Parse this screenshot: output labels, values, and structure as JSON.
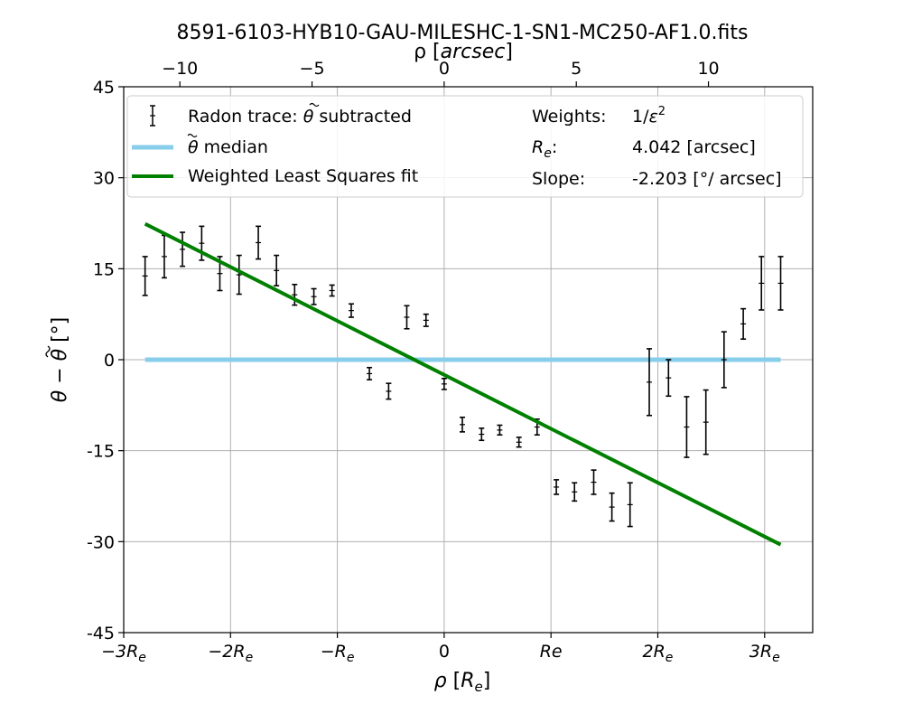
{
  "chart_data": {
    "type": "scatter",
    "title": "8591-6103-HYB10-GAU-MILESHC-1-SN1-MC250-AF1.0.fits",
    "xlabel": "ρ [Rₑ]",
    "xlabel_parts": {
      "main": "ρ [R",
      "sub": "e",
      "end": "]"
    },
    "x2label": "ρ [arcsec]",
    "x2label_parts": {
      "main": "ρ [",
      "italic": "arcsec",
      "end": "]"
    },
    "ylabel": "θ − θ̃ [°]",
    "xlim": [
      -3.0,
      3.45
    ],
    "ylim": [
      -45,
      45
    ],
    "x2lim": [
      -12.126,
      13.945
    ],
    "yticks": [
      -45,
      -30,
      -15,
      0,
      15,
      30,
      45
    ],
    "ytick_labels": [
      "-45",
      "-30",
      "-15",
      "0",
      "15",
      "30",
      "45"
    ],
    "xticks": [
      -3,
      -2,
      -1,
      0,
      1,
      2,
      3
    ],
    "xtick_labels": [
      {
        "base": "−3R",
        "sub": "e"
      },
      {
        "base": "−2R",
        "sub": "e"
      },
      {
        "base": "−R",
        "sub": "e"
      },
      {
        "base": "0",
        "sub": ""
      },
      {
        "base": "Re",
        "sub": ""
      },
      {
        "base": "2R",
        "sub": "e"
      },
      {
        "base": "3R",
        "sub": "e"
      }
    ],
    "x2ticks": [
      -10,
      -5,
      0,
      5,
      10
    ],
    "x2tick_labels": [
      "−10",
      "−5",
      "0",
      "5",
      "10"
    ],
    "grid": true,
    "legend_position": "top",
    "colors": {
      "points": "#000000",
      "median": "#87ceeb",
      "fit": "#008000"
    },
    "series": [
      {
        "name": "Radon trace: θ̃ subtracted",
        "name_parts": {
          "pre": "Radon trace: ",
          "sym": "θ",
          "post": " subtracted"
        },
        "kind": "errorbar",
        "x": [
          -2.8,
          -2.62,
          -2.45,
          -2.27,
          -2.1,
          -1.92,
          -1.74,
          -1.57,
          -1.4,
          -1.22,
          -1.05,
          -0.87,
          -0.7,
          -0.52,
          -0.35,
          -0.17,
          0.0,
          0.17,
          0.35,
          0.52,
          0.7,
          0.87,
          1.05,
          1.22,
          1.4,
          1.57,
          1.74,
          1.92,
          2.1,
          2.27,
          2.45,
          2.62,
          2.8,
          2.97,
          3.15
        ],
        "y": [
          13.8,
          17.0,
          18.2,
          19.2,
          14.2,
          14.0,
          19.3,
          14.7,
          10.7,
          10.4,
          11.4,
          8.1,
          -2.3,
          -5.2,
          7.0,
          6.5,
          -4.0,
          -10.7,
          -12.3,
          -11.6,
          -13.6,
          -11.1,
          -21.0,
          -21.8,
          -20.2,
          -24.3,
          -23.9,
          -3.7,
          -3.0,
          -11.1,
          -10.3,
          0.0,
          5.9,
          12.6,
          12.6
        ],
        "yerr": [
          3.2,
          3.5,
          2.8,
          2.8,
          2.8,
          3.2,
          2.7,
          2.5,
          1.7,
          1.3,
          0.9,
          1.1,
          1.0,
          1.3,
          1.9,
          1.0,
          0.9,
          1.2,
          1.0,
          0.8,
          0.8,
          1.3,
          1.2,
          1.5,
          2.0,
          2.3,
          3.6,
          5.5,
          3.0,
          5.0,
          5.3,
          4.6,
          2.5,
          4.4,
          4.4
        ]
      },
      {
        "name": "θ̃ median",
        "name_parts": {
          "pre": "",
          "sym": "θ",
          "post": " median"
        },
        "kind": "line",
        "x": [
          -2.8,
          3.15
        ],
        "y": [
          0,
          0
        ]
      },
      {
        "name": "Weighted Least Squares fit",
        "kind": "line",
        "x": [
          -2.8,
          3.15
        ],
        "y": [
          22.4,
          -30.5
        ]
      }
    ],
    "annotations": {
      "weights_label": "Weights:",
      "weights_value": "1/ε²",
      "re_label": "Rₑ:",
      "re_label_parts": {
        "main": "R",
        "sub": "e",
        "end": ":"
      },
      "re_value": "4.042 [arcsec]",
      "slope_label": "Slope:",
      "slope_value": "-2.203 [°/ arcsec]"
    }
  }
}
